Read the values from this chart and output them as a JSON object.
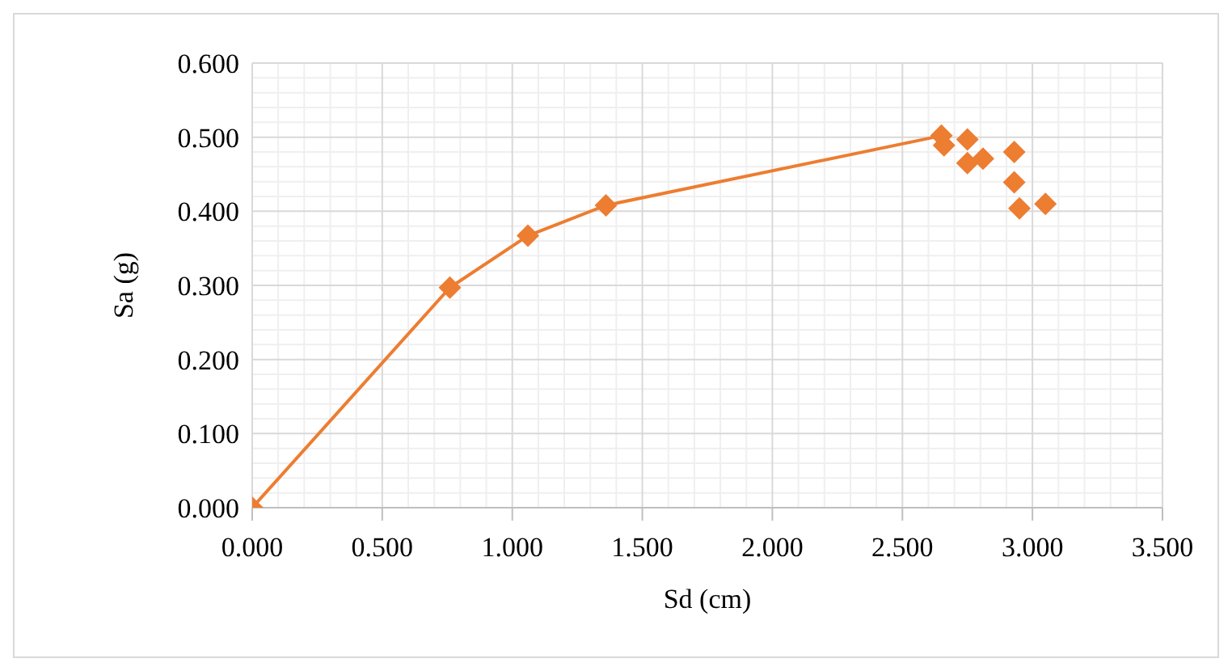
{
  "chart_data": {
    "type": "line",
    "xlabel": "Sd (cm)",
    "ylabel": "Sa (g)",
    "xlim": [
      0,
      3.5
    ],
    "xticks": [
      {
        "value": 0,
        "label": "0.000"
      },
      {
        "value": 0.5,
        "label": "0.500"
      },
      {
        "value": 1,
        "label": "1.000"
      },
      {
        "value": 1.5,
        "label": "1.500"
      },
      {
        "value": 2,
        "label": "2.000"
      },
      {
        "value": 2.5,
        "label": "2.500"
      },
      {
        "value": 3,
        "label": "3.000"
      },
      {
        "value": 3.5,
        "label": "3.500"
      }
    ],
    "ylim": [
      0,
      0.6
    ],
    "yticks": [
      {
        "value": 0,
        "label": "0.000"
      },
      {
        "value": 0.1,
        "label": "0.100"
      },
      {
        "value": 0.2,
        "label": "0.200"
      },
      {
        "value": 0.3,
        "label": "0.300"
      },
      {
        "value": 0.4,
        "label": "0.400"
      },
      {
        "value": 0.5,
        "label": "0.500"
      },
      {
        "value": 0.6,
        "label": "0.600"
      }
    ],
    "grid": true,
    "marker": "diamond",
    "line_style": "solid",
    "series": [
      {
        "type": "line",
        "color": "#ed7d31",
        "x": [
          0,
          0.76,
          1.06,
          1.36,
          2.65
        ],
        "values": [
          0,
          0.297,
          0.367,
          0.408,
          0.502
        ]
      },
      {
        "type": "scatter",
        "color": "#ed7d31",
        "x": [
          2.66,
          2.75,
          2.75,
          2.81,
          2.93,
          2.93,
          2.95,
          3.05
        ],
        "values": [
          0.489,
          0.497,
          0.465,
          0.471,
          0.48,
          0.439,
          0.404,
          0.41
        ]
      }
    ]
  }
}
